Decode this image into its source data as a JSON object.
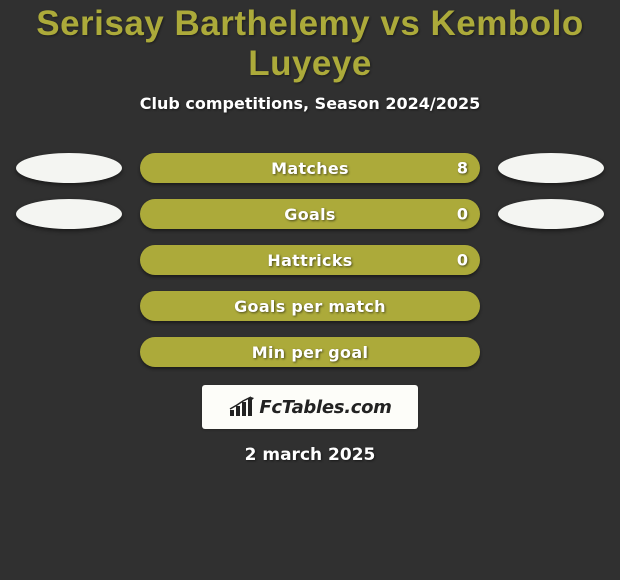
{
  "title_color": "#acaa3a",
  "background_color": "#303030",
  "player1": "Serisay Barthelemy",
  "player2": "Kembolo Luyeye",
  "subtitle": "Club competitions, Season 2024/2025",
  "pill_left_color": "#f4f5f2",
  "pill_right_color": "#f4f5f2",
  "bar_color": "#acaa3a",
  "stats": [
    {
      "label": "Matches",
      "value_right": "8",
      "show_pills": true,
      "show_value": true
    },
    {
      "label": "Goals",
      "value_right": "0",
      "show_pills": true,
      "show_value": true
    },
    {
      "label": "Hattricks",
      "value_right": "0",
      "show_pills": false,
      "show_value": true
    },
    {
      "label": "Goals per match",
      "value_right": "",
      "show_pills": false,
      "show_value": false
    },
    {
      "label": "Min per goal",
      "value_right": "",
      "show_pills": false,
      "show_value": false
    }
  ],
  "logo_text": "FcTables.com",
  "date_text": "2 march 2025"
}
